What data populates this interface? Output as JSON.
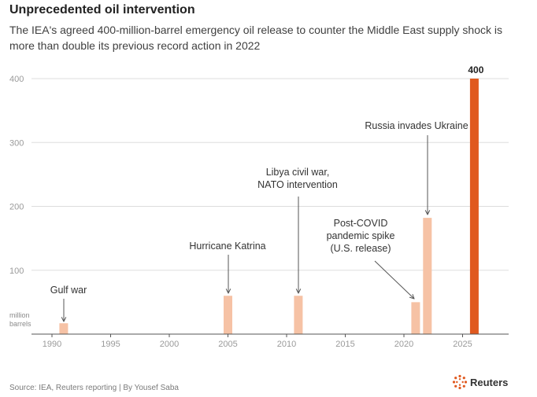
{
  "header": {
    "title": "Unprecedented oil intervention",
    "subtitle": "The IEA's agreed 400-million-barrel emergency oil release to counter the Middle East supply shock is more than double its previous record action in 2022"
  },
  "footer": {
    "source": "Source: IEA, Reuters reporting | By Yousef Saba",
    "brand": "Reuters"
  },
  "colors": {
    "bar": "#f6c2a5",
    "highlight": "#e0591f",
    "grid": "#dddddd",
    "axis": "#555555",
    "tick_text": "#9a9a9a",
    "annotation_text": "#333333"
  },
  "chart_data": {
    "type": "bar",
    "title": "Unprecedented oil intervention",
    "ylabel": "million barrels",
    "xlabel": "",
    "xlim": [
      1987,
      2029
    ],
    "ylim": [
      0,
      400
    ],
    "x_ticks": [
      1990,
      1995,
      2000,
      2005,
      2010,
      2015,
      2020,
      2025
    ],
    "y_ticks": [
      100,
      200,
      300,
      400
    ],
    "bars": [
      {
        "year": 1991,
        "value": 17,
        "label": "Gulf war",
        "highlight": false
      },
      {
        "year": 2005,
        "value": 60,
        "label": "Hurricane Katrina",
        "highlight": false
      },
      {
        "year": 2011,
        "value": 60,
        "label": "Libya civil war, NATO intervention",
        "highlight": false
      },
      {
        "year": 2021,
        "value": 50,
        "label": "Post-COVID pandemic spike (U.S. release)",
        "highlight": false
      },
      {
        "year": 2022,
        "value": 182,
        "label": "Russia invades Ukraine",
        "highlight": false
      },
      {
        "year": 2026,
        "value": 400,
        "label": "",
        "value_label": "400",
        "highlight": true
      }
    ],
    "annotations": [
      {
        "lines": [
          "Gulf war"
        ],
        "target_year": 1991
      },
      {
        "lines": [
          "Hurricane Katrina"
        ],
        "target_year": 2005
      },
      {
        "lines": [
          "Libya civil war,",
          "NATO intervention"
        ],
        "target_year": 2011
      },
      {
        "lines": [
          "Post-COVID",
          "pandemic spike",
          "(U.S. release)"
        ],
        "target_year": 2021
      },
      {
        "lines": [
          "Russia invades Ukraine"
        ],
        "target_year": 2022
      }
    ],
    "unit_label_lines": [
      "million",
      "barrels"
    ],
    "grid": true
  }
}
